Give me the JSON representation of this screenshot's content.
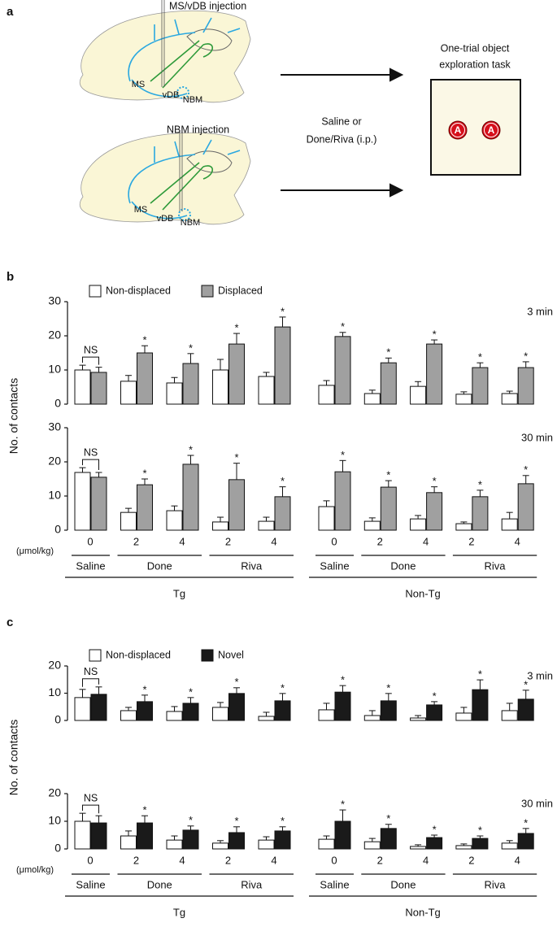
{
  "panel_labels": [
    "a",
    "b",
    "c"
  ],
  "diagram": {
    "brains": [
      {
        "title": "MS/vDB injection",
        "labels": [
          "MS",
          "vDB",
          "NBM"
        ]
      },
      {
        "title": "NBM injection",
        "labels": [
          "MS",
          "vDB",
          "NBM"
        ]
      }
    ],
    "treatment": [
      "Saline or",
      "Done/Riva (i.p.)"
    ],
    "task": [
      "One-trial object",
      "exploration task"
    ],
    "objects": [
      "A",
      "A"
    ]
  },
  "chart_data": [
    {
      "type": "bar",
      "ylabel": "No. of contacts",
      "time_label": "3 min",
      "ylim": [
        0,
        30
      ],
      "yticks": [
        0,
        10,
        20,
        30
      ],
      "series": [
        {
          "name": "Non-displaced",
          "color": "#ffffff",
          "values": [
            10,
            6.7,
            6.2,
            10,
            8.1,
            5.5,
            3.1,
            5.2,
            2.9,
            3.1
          ],
          "errors": [
            1.4,
            1.7,
            1.6,
            3.1,
            1.2,
            1.4,
            1,
            1.4,
            0.7,
            0.7
          ]
        },
        {
          "name": "Displaced",
          "color": "#a0a0a0",
          "values": [
            9.3,
            15,
            11.9,
            17.6,
            22.6,
            19.8,
            12.1,
            17.6,
            10.7,
            10.7
          ],
          "errors": [
            1.5,
            2.1,
            2.9,
            3.1,
            2.9,
            1.2,
            1.4,
            1.2,
            1.4,
            1.7
          ]
        }
      ],
      "significance": [
        "NS",
        "*",
        "*",
        "*",
        "*",
        "*",
        "*",
        "*",
        "*",
        "*"
      ]
    },
    {
      "type": "bar",
      "time_label": "30 min",
      "ylim": [
        0,
        30
      ],
      "yticks": [
        0,
        10,
        20,
        30
      ],
      "categories": [
        "0",
        "2",
        "4",
        "2",
        "4",
        "0",
        "2",
        "4",
        "2",
        "4"
      ],
      "x_unit": "(μmol/kg)",
      "drugs": [
        "Saline",
        "Done",
        "Riva",
        "Saline",
        "Done",
        "Riva"
      ],
      "genotypes": [
        "Tg",
        "Non-Tg"
      ],
      "series": [
        {
          "color": "#ffffff",
          "values": [
            16.9,
            5.2,
            5.7,
            2.4,
            2.6,
            6.9,
            2.6,
            3.3,
            1.9,
            3.3
          ],
          "errors": [
            1.4,
            1.2,
            1.4,
            1.4,
            1.2,
            1.7,
            1,
            1,
            0.5,
            1.9
          ]
        },
        {
          "color": "#a0a0a0",
          "values": [
            15.5,
            13.3,
            19.3,
            14.8,
            9.8,
            17.1,
            12.6,
            11,
            9.8,
            13.6
          ],
          "errors": [
            1.4,
            1.7,
            2.6,
            4.8,
            2.9,
            3.3,
            1.9,
            1.7,
            1.9,
            2.4
          ]
        }
      ],
      "significance": [
        "NS",
        "*",
        "*",
        "*",
        "*",
        "*",
        "*",
        "*",
        "*",
        "*"
      ]
    },
    {
      "type": "bar",
      "ylabel": "No. of contacts",
      "time_label": "3 min",
      "ylim": [
        0,
        20
      ],
      "yticks": [
        0,
        10,
        20
      ],
      "series": [
        {
          "name": "Non-displaced",
          "color": "#ffffff",
          "values": [
            8.4,
            3.6,
            3.3,
            4.8,
            1.5,
            3.9,
            1.8,
            0.9,
            2.7,
            3.6
          ],
          "errors": [
            3,
            1.2,
            1.8,
            1.8,
            1.5,
            2.4,
            1.8,
            0.9,
            2.1,
            2.7
          ]
        },
        {
          "name": "Novel",
          "color": "#1a1a1a",
          "values": [
            9.6,
            6.9,
            6.3,
            9.9,
            7.2,
            10.4,
            7.2,
            5.7,
            11.3,
            7.8
          ],
          "errors": [
            2.7,
            2.4,
            2.1,
            2.1,
            2.7,
            2.4,
            2.7,
            1.2,
            3.6,
            3.3
          ]
        }
      ],
      "significance": [
        "NS",
        "*",
        "*",
        "*",
        "*",
        "*",
        "*",
        "*",
        "*",
        "*"
      ]
    },
    {
      "type": "bar",
      "time_label": "30 min",
      "ylim": [
        0,
        20
      ],
      "yticks": [
        0,
        10,
        20
      ],
      "categories": [
        "0",
        "2",
        "4",
        "2",
        "4",
        "0",
        "2",
        "4",
        "2",
        "4"
      ],
      "x_unit": "(μmol/kg)",
      "drugs": [
        "Saline",
        "Done",
        "Riva",
        "Saline",
        "Done",
        "Riva"
      ],
      "genotypes": [
        "Tg",
        "Non-Tg"
      ],
      "series": [
        {
          "color": "#ffffff",
          "values": [
            10,
            4.7,
            3.2,
            2.1,
            3.2,
            3.5,
            2.6,
            0.9,
            1.2,
            2.1
          ],
          "errors": [
            2.9,
            1.8,
            1.5,
            0.9,
            1.2,
            1.2,
            1.2,
            0.6,
            0.6,
            0.9
          ]
        },
        {
          "color": "#1a1a1a",
          "values": [
            9.4,
            9.4,
            6.8,
            5.9,
            6.5,
            10,
            7.4,
            4.1,
            3.8,
            5.6
          ],
          "errors": [
            2.6,
            2.6,
            1.5,
            2.1,
            1.5,
            4.1,
            1.5,
            0.9,
            0.9,
            1.8
          ]
        }
      ],
      "significance": [
        "NS",
        "*",
        "*",
        "*",
        "*",
        "*",
        "*",
        "*",
        "*",
        "*"
      ]
    }
  ]
}
